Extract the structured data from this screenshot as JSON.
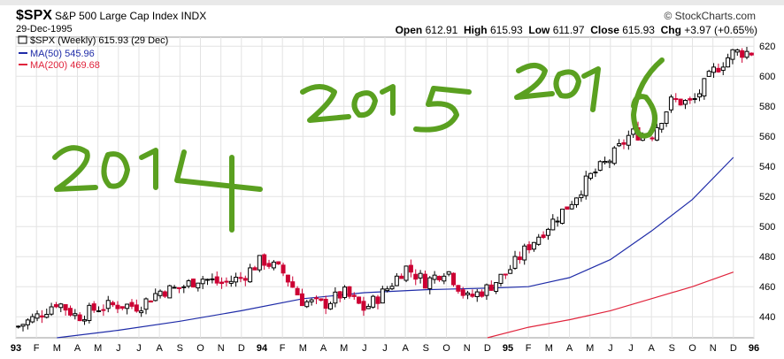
{
  "header": {
    "symbol": "$SPX",
    "name": "S&P 500 Large Cap Index INDX",
    "date": "29-Dec-1995",
    "brand": "© StockCharts.com",
    "quote": {
      "open_label": "Open",
      "open": "612.91",
      "high_label": "High",
      "high": "615.93",
      "low_label": "Low",
      "low": "611.97",
      "close_label": "Close",
      "close": "615.93",
      "chg_label": "Chg",
      "chg": "+3.97 (+0.65%)"
    }
  },
  "legend": {
    "price": "$SPX (Weekly) 615.93 (29 Dec)",
    "ma50": "MA(50) 545.96",
    "ma200": "MA(200) 469.68"
  },
  "annotations": {
    "a2014": "2014",
    "a2015": "2015",
    "a2016": "2016"
  },
  "colors": {
    "up": "#000000",
    "down": "#cc0033",
    "ma50": "#1f2ca8",
    "ma200": "#e0243c",
    "annotation": "#5aa020",
    "grid": "#e3e3e3"
  },
  "chart_data": {
    "type": "candlestick",
    "title": "$SPX S&P 500 Large Cap Index INDX",
    "ylim": [
      426,
      626
    ],
    "y_ticks": [
      440,
      460,
      480,
      500,
      520,
      540,
      560,
      580,
      600,
      620
    ],
    "x_ticks": [
      "93",
      "F",
      "M",
      "A",
      "M",
      "J",
      "J",
      "A",
      "S",
      "O",
      "N",
      "D",
      "94",
      "F",
      "M",
      "A",
      "M",
      "J",
      "J",
      "A",
      "S",
      "O",
      "N",
      "D",
      "95",
      "F",
      "M",
      "A",
      "M",
      "J",
      "J",
      "A",
      "S",
      "O",
      "N",
      "D",
      "96"
    ],
    "grid": true,
    "series": [
      {
        "name": "$SPX (Weekly)",
        "close_points": [
          [
            "1993-01",
            433
          ],
          [
            "1993-02",
            440
          ],
          [
            "1993-03",
            450
          ],
          [
            "1993-04",
            440
          ],
          [
            "1993-05",
            446
          ],
          [
            "1993-06",
            448
          ],
          [
            "1993-07",
            447
          ],
          [
            "1993-08",
            457
          ],
          [
            "1993-09",
            459
          ],
          [
            "1993-10",
            466
          ],
          [
            "1993-11",
            462
          ],
          [
            "1993-12",
            466
          ],
          [
            "1994-01",
            478
          ],
          [
            "1994-02",
            470
          ],
          [
            "1994-03",
            450
          ],
          [
            "1994-04",
            448
          ],
          [
            "1994-05",
            456
          ],
          [
            "1994-06",
            445
          ],
          [
            "1994-07",
            457
          ],
          [
            "1994-08",
            473
          ],
          [
            "1994-09",
            463
          ],
          [
            "1994-10",
            472
          ],
          [
            "1994-11",
            452
          ],
          [
            "1994-12",
            459
          ],
          [
            "1995-01",
            470
          ],
          [
            "1995-02",
            487
          ],
          [
            "1995-03",
            501
          ],
          [
            "1995-04",
            515
          ],
          [
            "1995-05",
            533
          ],
          [
            "1995-06",
            545
          ],
          [
            "1995-07",
            562
          ],
          [
            "1995-08",
            561
          ],
          [
            "1995-09",
            584
          ],
          [
            "1995-10",
            582
          ],
          [
            "1995-11",
            603
          ],
          [
            "1995-12",
            616
          ]
        ]
      },
      {
        "name": "MA(50)",
        "points": [
          [
            "1993-03",
            426
          ],
          [
            "1993-06",
            431
          ],
          [
            "1993-09",
            437
          ],
          [
            "1993-12",
            444
          ],
          [
            "1994-03",
            452
          ],
          [
            "1994-06",
            456
          ],
          [
            "1994-09",
            458
          ],
          [
            "1994-12",
            459
          ],
          [
            "1995-02",
            460
          ],
          [
            "1995-04",
            466
          ],
          [
            "1995-06",
            478
          ],
          [
            "1995-08",
            497
          ],
          [
            "1995-10",
            518
          ],
          [
            "1995-12",
            546
          ]
        ]
      },
      {
        "name": "MA(200)",
        "points": [
          [
            "1994-12",
            426
          ],
          [
            "1995-02",
            433
          ],
          [
            "1995-04",
            438
          ],
          [
            "1995-06",
            444
          ],
          [
            "1995-08",
            452
          ],
          [
            "1995-10",
            460
          ],
          [
            "1995-12",
            469.68
          ]
        ]
      }
    ]
  }
}
